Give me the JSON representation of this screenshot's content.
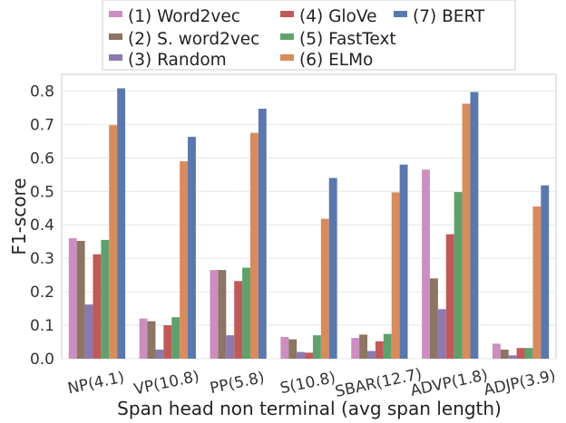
{
  "chart_data": {
    "type": "bar",
    "title": "",
    "xlabel": "Span head non terminal (avg span length)",
    "ylabel": "F1-score",
    "categories": [
      "NP(4.1)",
      "VP(10.8)",
      "PP(5.8)",
      "S(10.8)",
      "SBAR(12.7)",
      "ADVP(1.8)",
      "ADJP(3.9)"
    ],
    "ylim": [
      0,
      0.85
    ],
    "yticks": [
      "0.0",
      "0.1",
      "0.2",
      "0.3",
      "0.4",
      "0.5",
      "0.6",
      "0.7",
      "0.8"
    ],
    "ytick_values": [
      0.0,
      0.1,
      0.2,
      0.3,
      0.4,
      0.5,
      0.6,
      0.7,
      0.8
    ],
    "grid": true,
    "legend_position": "top",
    "series": [
      {
        "name": "(1) Word2vec",
        "color": "#cc8ec1",
        "values": [
          0.36,
          0.12,
          0.265,
          0.065,
          0.062,
          0.565,
          0.045
        ]
      },
      {
        "name": "(2) S. word2vec",
        "color": "#8c7563",
        "values": [
          0.352,
          0.112,
          0.265,
          0.058,
          0.072,
          0.24,
          0.027
        ]
      },
      {
        "name": "(3) Random",
        "color": "#8b79b0",
        "values": [
          0.162,
          0.027,
          0.07,
          0.02,
          0.023,
          0.148,
          0.01
        ]
      },
      {
        "name": "(4) GloVe",
        "color": "#c05a59",
        "values": [
          0.312,
          0.1,
          0.232,
          0.018,
          0.052,
          0.372,
          0.032
        ]
      },
      {
        "name": "(5) FastText",
        "color": "#5fa16c",
        "values": [
          0.355,
          0.124,
          0.272,
          0.07,
          0.074,
          0.498,
          0.032
        ]
      },
      {
        "name": "(6) ELMo",
        "color": "#d88b5c",
        "values": [
          0.698,
          0.59,
          0.675,
          0.418,
          0.497,
          0.762,
          0.455
        ]
      },
      {
        "name": "(7) BERT",
        "color": "#5a78ad",
        "values": [
          0.808,
          0.663,
          0.747,
          0.54,
          0.58,
          0.797,
          0.518
        ]
      }
    ]
  }
}
